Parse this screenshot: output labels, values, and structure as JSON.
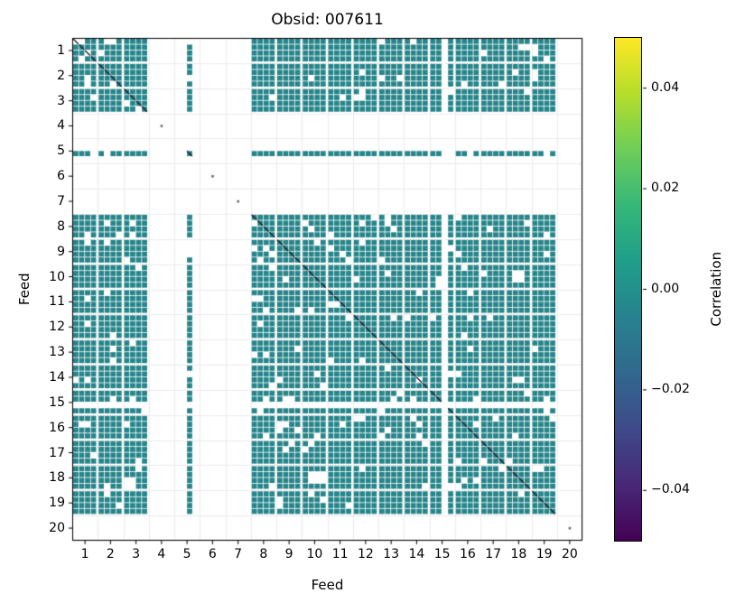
{
  "figure": {
    "title": "Obsid: 007611",
    "background": "#ffffff"
  },
  "axes": {
    "xlabel": "Feed",
    "ylabel": "Feed",
    "x_ticks": [
      "1",
      "2",
      "3",
      "4",
      "5",
      "6",
      "7",
      "8",
      "9",
      "10",
      "11",
      "12",
      "13",
      "14",
      "15",
      "16",
      "17",
      "18",
      "19",
      "20"
    ],
    "y_ticks": [
      "1",
      "2",
      "3",
      "4",
      "5",
      "6",
      "7",
      "8",
      "9",
      "10",
      "11",
      "12",
      "13",
      "14",
      "15",
      "16",
      "17",
      "18",
      "19",
      "20"
    ]
  },
  "colorbar": {
    "label": "Correlation",
    "ticks": [
      "0.04",
      "0.02",
      "0.00",
      "−0.02",
      "−0.04"
    ],
    "tick_values": [
      0.04,
      0.02,
      0.0,
      -0.02,
      -0.04
    ],
    "vmin": -0.05,
    "vmax": 0.05,
    "colormap": "viridis",
    "gradient": [
      "#440154",
      "#482878",
      "#3e4a89",
      "#31688e",
      "#26828e",
      "#1f9e89",
      "#35b779",
      "#6ece58",
      "#b5de2b",
      "#fde725"
    ]
  },
  "chart_data": {
    "type": "heatmap",
    "title": "Obsid: 007611",
    "xlabel": "Feed",
    "ylabel": "Feed",
    "feeds": [
      1,
      2,
      3,
      4,
      5,
      6,
      7,
      8,
      9,
      10,
      11,
      12,
      13,
      14,
      15,
      16,
      17,
      18,
      19,
      20
    ],
    "bands_per_feed": 4,
    "active_feeds": [
      1,
      2,
      3,
      5,
      8,
      9,
      10,
      11,
      12,
      13,
      14,
      15,
      16,
      17,
      18,
      19
    ],
    "inactive_feeds": [
      4,
      6,
      7,
      20
    ],
    "band_active": [
      [
        1,
        1,
        1,
        1
      ],
      [
        1,
        1,
        1,
        1
      ],
      [
        1,
        1,
        1,
        1
      ],
      [
        0,
        0,
        0,
        0
      ],
      [
        0,
        0,
        1,
        0
      ],
      [
        0,
        0,
        0,
        0
      ],
      [
        0,
        0,
        0,
        0
      ],
      [
        1,
        1,
        1,
        1
      ],
      [
        1,
        1,
        1,
        1
      ],
      [
        1,
        1,
        1,
        1
      ],
      [
        1,
        1,
        1,
        1
      ],
      [
        1,
        1,
        1,
        1
      ],
      [
        1,
        1,
        1,
        1
      ],
      [
        1,
        1,
        1,
        1
      ],
      [
        1,
        1,
        0,
        1
      ],
      [
        1,
        1,
        1,
        1
      ],
      [
        1,
        1,
        1,
        1
      ],
      [
        1,
        1,
        1,
        1
      ],
      [
        1,
        1,
        1,
        1
      ],
      [
        0,
        0,
        0,
        0
      ]
    ],
    "typical_value": 0.0,
    "diagonal_value_estimate": -0.05,
    "value_range": [
      -0.05,
      0.05
    ],
    "matrix_feed_mean": [
      [
        -0.05,
        0,
        0,
        null,
        0,
        null,
        null,
        0,
        0,
        0,
        0,
        0,
        0,
        0,
        0,
        0,
        0,
        0,
        0,
        null
      ],
      [
        0,
        -0.05,
        0,
        null,
        0,
        null,
        null,
        0,
        0,
        0,
        0,
        0,
        0,
        0,
        0,
        0,
        0,
        0,
        0,
        null
      ],
      [
        0,
        0,
        -0.05,
        null,
        0,
        null,
        null,
        0,
        0,
        0,
        0,
        0,
        0,
        0,
        0,
        0,
        0,
        0,
        0,
        null
      ],
      [
        null,
        null,
        null,
        null,
        null,
        null,
        null,
        null,
        null,
        null,
        null,
        null,
        null,
        null,
        null,
        null,
        null,
        null,
        null,
        null
      ],
      [
        0,
        0,
        0,
        null,
        -0.05,
        null,
        null,
        0,
        0,
        0,
        0,
        0,
        0,
        0,
        0,
        0,
        0,
        0,
        0,
        null
      ],
      [
        null,
        null,
        null,
        null,
        null,
        null,
        null,
        null,
        null,
        null,
        null,
        null,
        null,
        null,
        null,
        null,
        null,
        null,
        null,
        null
      ],
      [
        null,
        null,
        null,
        null,
        null,
        null,
        null,
        null,
        null,
        null,
        null,
        null,
        null,
        null,
        null,
        null,
        null,
        null,
        null,
        null
      ],
      [
        0,
        0,
        0,
        null,
        0,
        null,
        null,
        -0.05,
        0,
        0,
        0,
        0,
        0,
        0,
        0,
        0,
        0,
        0,
        0,
        null
      ],
      [
        0,
        0,
        0,
        null,
        0,
        null,
        null,
        0,
        -0.05,
        0,
        0,
        0,
        0,
        0,
        0,
        0,
        0,
        0,
        0,
        null
      ],
      [
        0,
        0,
        0,
        null,
        0,
        null,
        null,
        0,
        0,
        -0.05,
        0,
        0,
        0,
        0,
        0,
        0,
        0,
        0,
        0,
        null
      ],
      [
        0,
        0,
        0,
        null,
        0,
        null,
        null,
        0,
        0,
        0,
        -0.05,
        0,
        0,
        0,
        0,
        0,
        0,
        0,
        0,
        null
      ],
      [
        0,
        0,
        0,
        null,
        0,
        null,
        null,
        0,
        0,
        0,
        0,
        -0.05,
        0,
        0,
        0,
        0,
        0,
        0,
        0,
        null
      ],
      [
        0,
        0,
        0,
        null,
        0,
        null,
        null,
        0,
        0,
        0,
        0,
        0,
        -0.05,
        0,
        0,
        0,
        0,
        0,
        0,
        null
      ],
      [
        0,
        0,
        0,
        null,
        0,
        null,
        null,
        0,
        0,
        0,
        0,
        0,
        0,
        -0.05,
        0,
        0,
        0,
        0,
        0,
        null
      ],
      [
        0,
        0,
        0,
        null,
        0,
        null,
        null,
        0,
        0,
        0,
        0,
        0,
        0,
        0,
        -0.05,
        0,
        0,
        0,
        0,
        null
      ],
      [
        0,
        0,
        0,
        null,
        0,
        null,
        null,
        0,
        0,
        0,
        0,
        0,
        0,
        0,
        0,
        -0.05,
        0,
        0,
        0,
        null
      ],
      [
        0,
        0,
        0,
        null,
        0,
        null,
        null,
        0,
        0,
        0,
        0,
        0,
        0,
        0,
        0,
        0,
        -0.05,
        0,
        0,
        null
      ],
      [
        0,
        0,
        0,
        null,
        0,
        null,
        null,
        0,
        0,
        0,
        0,
        0,
        0,
        0,
        0,
        0,
        0,
        -0.05,
        0,
        null
      ],
      [
        0,
        0,
        0,
        null,
        0,
        null,
        null,
        0,
        0,
        0,
        0,
        0,
        0,
        0,
        0,
        0,
        0,
        0,
        -0.05,
        null
      ],
      [
        null,
        null,
        null,
        null,
        null,
        null,
        null,
        null,
        null,
        null,
        null,
        null,
        null,
        null,
        null,
        null,
        null,
        null,
        null,
        null
      ]
    ],
    "white_patches": [
      [
        70,
        1,
        3,
        1
      ],
      [
        5,
        0,
        2,
        1
      ],
      [
        69,
        37,
        2,
        2
      ],
      [
        37,
        69,
        3,
        2
      ],
      [
        69,
        54,
        2,
        1
      ],
      [
        57,
        38,
        2,
        1
      ],
      [
        18,
        33,
        1,
        2
      ],
      [
        33,
        57,
        2,
        1
      ],
      [
        8,
        70,
        2,
        2
      ],
      [
        44,
        9,
        2,
        1
      ],
      [
        49,
        28,
        1,
        2
      ],
      [
        28,
        41,
        2,
        1
      ]
    ],
    "noise": {
      "seed": 12345,
      "missing_fraction": 0.05
    },
    "colors": {
      "cell": "#26858a",
      "diagonal": "#1f1f2e",
      "speck": "#6a6a6a",
      "gridline": "#ebebeb",
      "frame": "#000000"
    }
  }
}
